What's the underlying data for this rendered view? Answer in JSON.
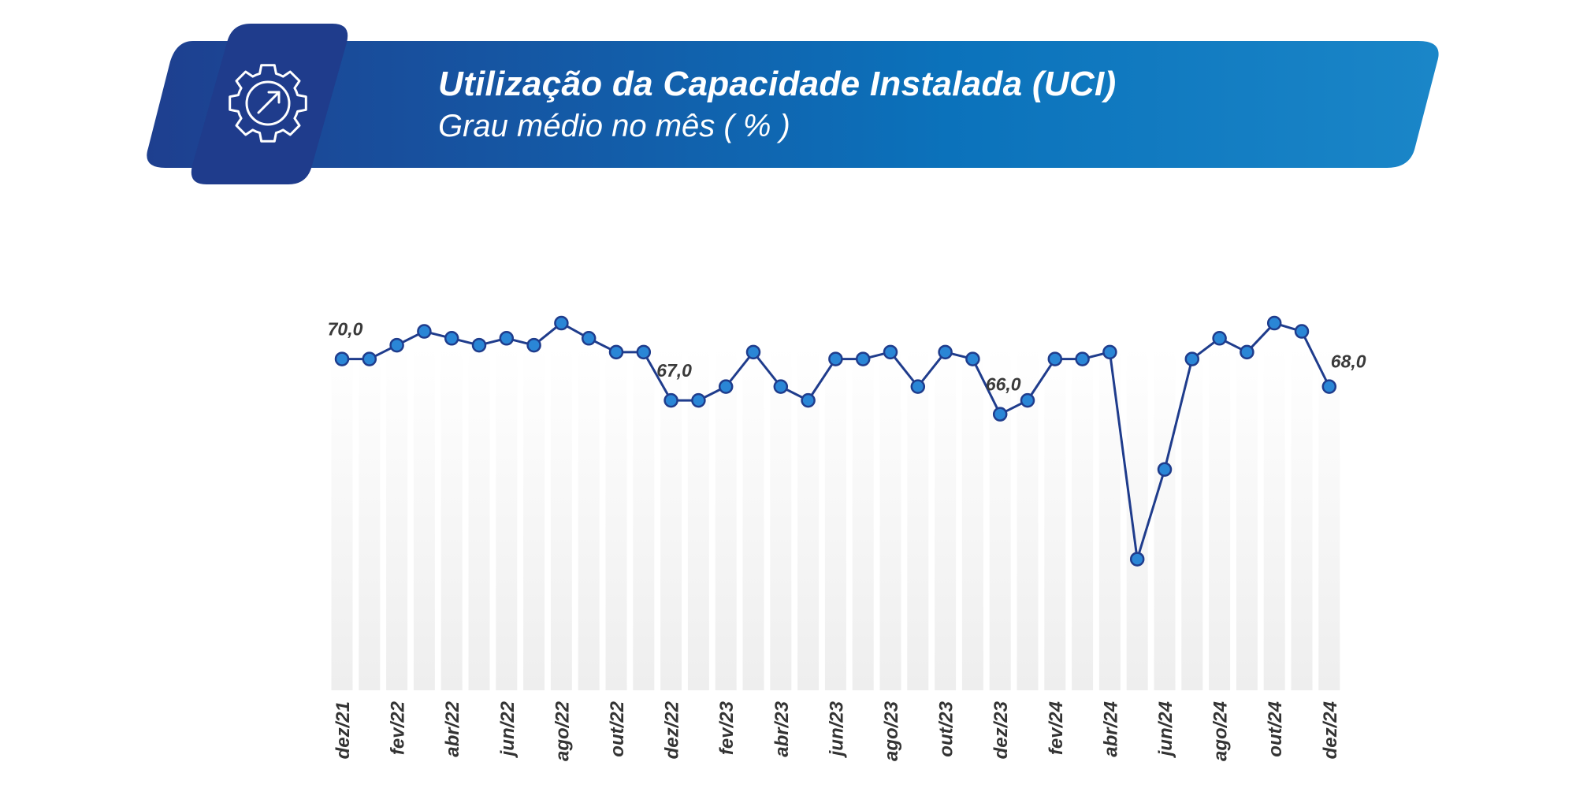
{
  "header": {
    "title": "Utilização da Capacidade Instalada (UCI)",
    "subtitle": "Grau médio no mês ( % )",
    "icon": "gear-arrow-icon",
    "colors": {
      "banner_start": "#1e3f8f",
      "banner_end": "#1a86c8",
      "icon_tile": "#1f3c8c"
    }
  },
  "chart_data": {
    "type": "line",
    "title": "Utilização da Capacidade Instalada (UCI)",
    "subtitle": "Grau médio no mês ( % )",
    "x": [
      "dez/21",
      "jan/22",
      "fev/22",
      "mar/22",
      "abr/22",
      "mai/22",
      "jun/22",
      "jul/22",
      "ago/22",
      "set/22",
      "out/22",
      "nov/22",
      "dez/22",
      "jan/23",
      "fev/23",
      "mar/23",
      "abr/23",
      "mai/23",
      "jun/23",
      "jul/23",
      "ago/23",
      "set/23",
      "out/23",
      "nov/23",
      "dez/23",
      "jan/24",
      "fev/24",
      "mar/24",
      "abr/24",
      "mai/24",
      "jun/24",
      "jul/24",
      "ago/24",
      "set/24",
      "out/24",
      "nov/24",
      "dez/24"
    ],
    "tick_labels": [
      "dez/21",
      "fev/22",
      "abr/22",
      "jun/22",
      "ago/22",
      "out/22",
      "dez/22",
      "fev/23",
      "abr/23",
      "jun/23",
      "ago/23",
      "out/23",
      "dez/23",
      "fev/24",
      "abr/24",
      "jun/24",
      "ago/24",
      "out/24",
      "dez/24"
    ],
    "series": [
      {
        "values": [
          70.0,
          70.0,
          71.0,
          72.0,
          71.5,
          71.0,
          71.5,
          71.0,
          72.6,
          71.5,
          70.5,
          70.5,
          67.0,
          67.0,
          68.0,
          70.5,
          68.0,
          67.0,
          70.0,
          70.0,
          70.5,
          68.0,
          70.5,
          70.0,
          66.0,
          67.0,
          70.0,
          70.0,
          70.5,
          55.5,
          62.0,
          70.0,
          71.5,
          70.5,
          72.6,
          72.0,
          68.0
        ]
      }
    ],
    "data_labels": [
      {
        "x": "dez/21",
        "text": "70,0"
      },
      {
        "x": "dez/22",
        "text": "67,0"
      },
      {
        "x": "dez/23",
        "text": "66,0"
      },
      {
        "x": "dez/24",
        "text": "68,0"
      }
    ],
    "ylim": [
      46,
      75
    ],
    "grid": false,
    "background_columns": true,
    "colors": {
      "line": "#1f3c8c",
      "marker_fill": "#2a86d6",
      "marker_stroke": "#1f3c8c",
      "column_top": "#ffffff",
      "column_bottom": "#eeeeee"
    }
  }
}
